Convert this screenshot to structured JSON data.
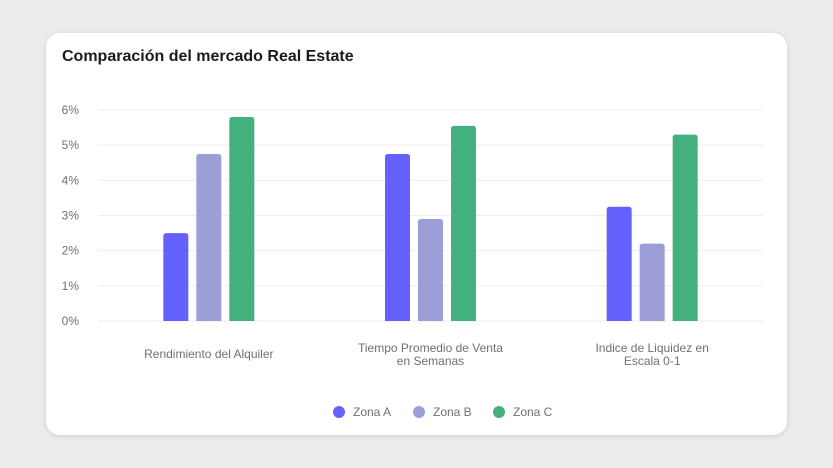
{
  "chart_data": {
    "type": "bar",
    "title": "Comparación del mercado Real Estate",
    "categories": [
      [
        "Rendimiento del Alquiler"
      ],
      [
        "Tiempo Promedio de Venta",
        "en Semanas"
      ],
      [
        "Indice de Liquidez en",
        "Escala 0-1"
      ]
    ],
    "series": [
      {
        "name": "Zona A",
        "color": "#6461fc",
        "values": [
          2.5,
          4.75,
          3.25
        ]
      },
      {
        "name": "Zona B",
        "color": "#9d9ed8",
        "values": [
          4.75,
          2.9,
          2.2
        ]
      },
      {
        "name": "Zona C",
        "color": "#43b07d",
        "values": [
          5.8,
          5.55,
          5.3
        ]
      }
    ],
    "ylim": [
      0,
      6
    ],
    "yticks": [
      "0%",
      "1%",
      "2%",
      "3%",
      "4%",
      "5%",
      "6%"
    ],
    "grid": true,
    "legend_position": "bottom-center"
  }
}
